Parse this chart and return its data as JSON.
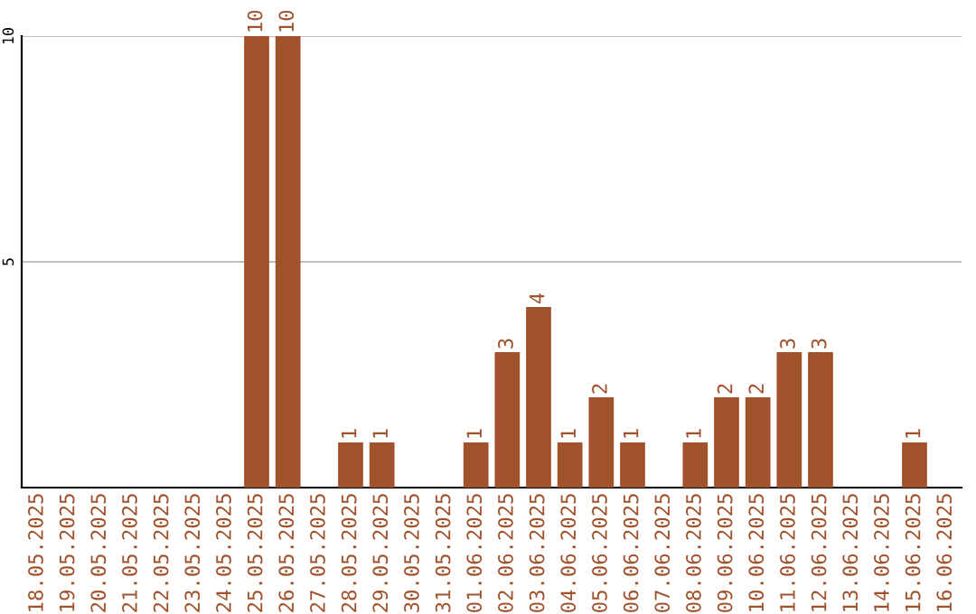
{
  "chart_data": {
    "type": "bar",
    "categories": [
      "18.05.2025",
      "19.05.2025",
      "20.05.2025",
      "21.05.2025",
      "22.05.2025",
      "23.05.2025",
      "24.05.2025",
      "25.05.2025",
      "26.05.2025",
      "27.05.2025",
      "28.05.2025",
      "29.05.2025",
      "30.05.2025",
      "31.05.2025",
      "01.06.2025",
      "02.06.2025",
      "03.06.2025",
      "04.06.2025",
      "05.06.2025",
      "06.06.2025",
      "07.06.2025",
      "08.06.2025",
      "09.06.2025",
      "10.06.2025",
      "11.06.2025",
      "12.06.2025",
      "13.06.2025",
      "14.06.2025",
      "15.06.2025",
      "16.06.2025"
    ],
    "values": [
      0,
      0,
      0,
      0,
      0,
      0,
      0,
      10,
      10,
      0,
      1,
      1,
      0,
      0,
      1,
      3,
      4,
      1,
      2,
      1,
      0,
      1,
      2,
      2,
      3,
      3,
      0,
      0,
      1,
      0
    ],
    "value_labels": [
      null,
      null,
      null,
      null,
      null,
      null,
      null,
      "10",
      "10",
      null,
      "1",
      "1",
      null,
      null,
      "1",
      "3",
      "4",
      "1",
      "2",
      "1",
      null,
      "1",
      "2",
      "2",
      "3",
      "3",
      null,
      null,
      "1",
      null
    ],
    "color": "#a0522d",
    "ylim": [
      0,
      10
    ],
    "yticks": [
      5,
      10
    ],
    "grid": "y"
  }
}
